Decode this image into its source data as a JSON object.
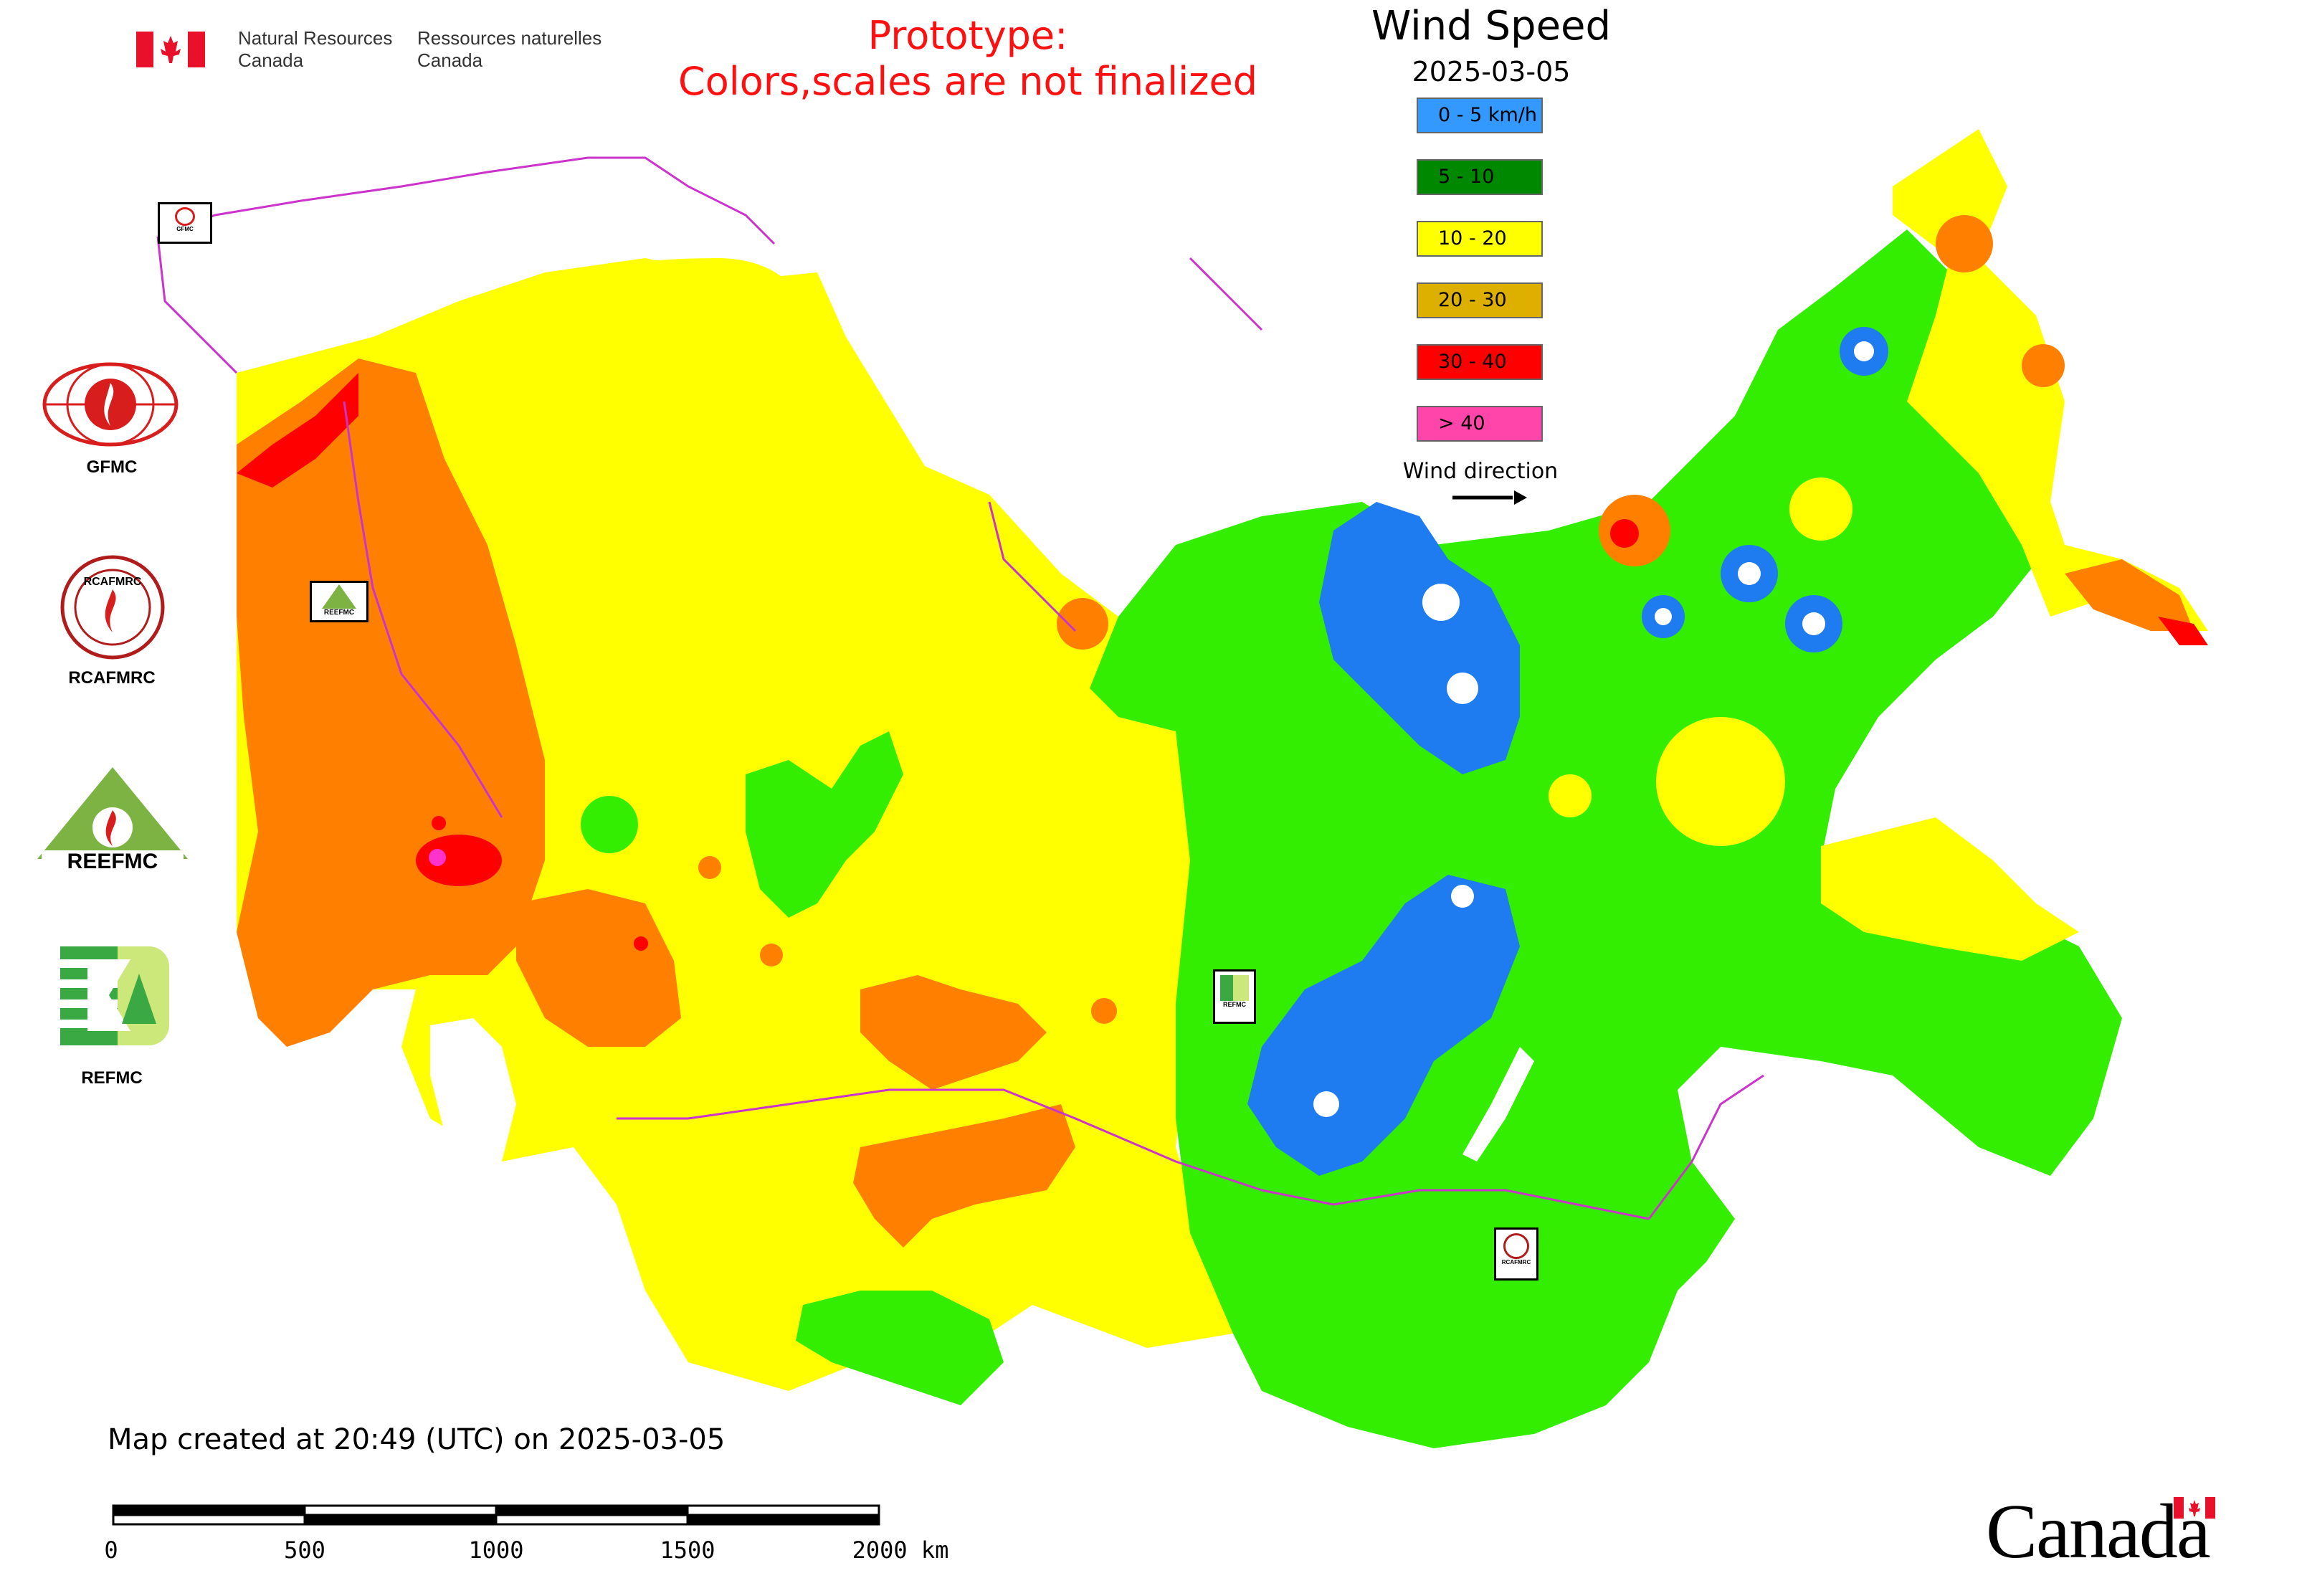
{
  "header": {
    "agency_en_1": "Natural Resources",
    "agency_en_2": "Canada",
    "agency_fr_1": "Ressources naturelles",
    "agency_fr_2": "Canada",
    "prototype_line1": "Prototype:",
    "prototype_line2": "Colors,scales are not finalized"
  },
  "legend": {
    "title": "Wind Speed",
    "date": "2025-03-05",
    "classes": [
      {
        "label": "0 - 5 km/h",
        "color": "#3399ff"
      },
      {
        "label": "5 - 10",
        "color": "#008800"
      },
      {
        "label": "10 - 20",
        "color": "#ffff00"
      },
      {
        "label": "20 - 30",
        "color": "#ddb000"
      },
      {
        "label": "30 - 40",
        "color": "#ff0000"
      },
      {
        "label": "> 40",
        "color": "#ff44aa"
      }
    ],
    "wind_direction_label": "Wind direction"
  },
  "side_logos": [
    {
      "label": "GFMC",
      "icon": "gfmc-logo"
    },
    {
      "label": "RCAFMRC",
      "icon": "rcafmrc-logo"
    },
    {
      "label": "",
      "icon": "reefmc-triangle-logo",
      "wordmark": "REEFMC"
    },
    {
      "label": "REFMC",
      "icon": "refmc-logo"
    }
  ],
  "map_markers": [
    {
      "name": "gfmc-marker",
      "text": "GFMC"
    },
    {
      "name": "reefmc-marker",
      "text": "REEFMC"
    },
    {
      "name": "refmc-marker",
      "text": "REFMC"
    },
    {
      "name": "rcafmrc-marker",
      "text": "RCAFMRC"
    }
  ],
  "map_colors": {
    "calm": "#1f7bf0",
    "light": "#33ee00",
    "moderate": "#ffff00",
    "strong": "#ff8000",
    "very_strong": "#ff0000",
    "extreme": "#ff33cc",
    "borders": "#cc33cc"
  },
  "footer": {
    "created": "Map created at 20:49 (UTC) on 2025-03-05",
    "scale_labels": [
      "0",
      "500",
      "1000",
      "1500",
      "2000 km"
    ],
    "wordmark": "Canada"
  }
}
